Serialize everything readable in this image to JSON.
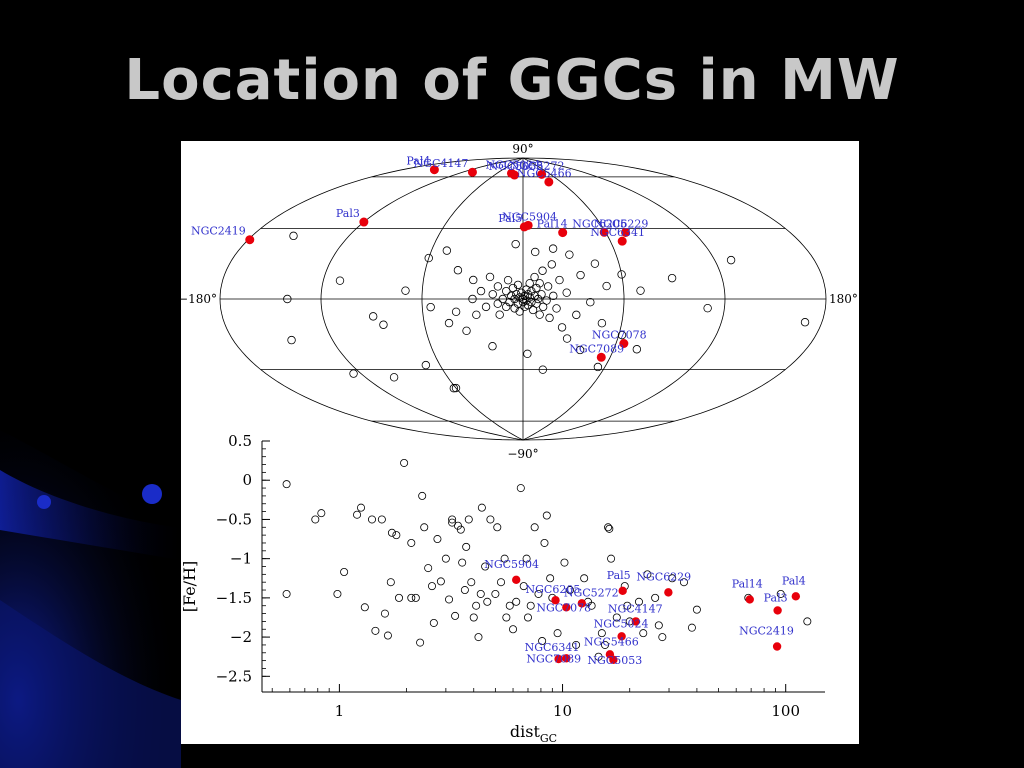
{
  "slide": {
    "title": "Location of GGCs in MW"
  },
  "colors": {
    "background": "#000000",
    "title": "#c8c8c8",
    "highlight": "#e8000b",
    "label": "#3333cc",
    "swoosh": "#0a1a9a"
  },
  "chart_data": [
    {
      "type": "scatter",
      "projection": "aitoff",
      "axis_labels": {
        "top": "90°",
        "bottom": "−90°",
        "left": "−180°",
        "right": "180°"
      },
      "grid": true,
      "highlighted": [
        {
          "name": "NGC2419",
          "l": -179,
          "b": 25
        },
        {
          "name": "Pal3",
          "l": -120,
          "b": 42
        },
        {
          "name": "Pal4",
          "l": -158,
          "b": 72
        },
        {
          "name": "NGC4147",
          "l": -107,
          "b": 77
        },
        {
          "name": "NGC5024",
          "l": -28,
          "b": 80
        },
        {
          "name": "NGC5053",
          "l": -19,
          "b": 79
        },
        {
          "name": "NGC5272",
          "l": 42,
          "b": 79
        },
        {
          "name": "NGC5466",
          "l": 42,
          "b": 74
        },
        {
          "name": "NGC5904",
          "l": 4,
          "b": 47
        },
        {
          "name": "Pal5",
          "l": 1,
          "b": 46
        },
        {
          "name": "Pal14",
          "l": 29,
          "b": 42
        },
        {
          "name": "NGC6229",
          "l": 74,
          "b": 40
        },
        {
          "name": "NGC6205",
          "l": 59,
          "b": 41
        },
        {
          "name": "NGC6341",
          "l": 68,
          "b": 35
        },
        {
          "name": "NGC7078",
          "l": 65,
          "b": -27
        },
        {
          "name": "NGC7089",
          "l": 54,
          "b": -36
        }
      ],
      "others": [
        [
          -155,
          30
        ],
        [
          -140,
          0
        ],
        [
          -145,
          -20
        ],
        [
          -125,
          -40
        ],
        [
          -110,
          10
        ],
        [
          -100,
          -45
        ],
        [
          -90,
          -10
        ],
        [
          -85,
          -15
        ],
        [
          -70,
          -40
        ],
        [
          -70,
          5
        ],
        [
          -60,
          25
        ],
        [
          -55,
          -5
        ],
        [
          -50,
          30
        ],
        [
          -45,
          -15
        ],
        [
          -40,
          18
        ],
        [
          -40,
          -8
        ],
        [
          -35,
          -20
        ],
        [
          -30,
          12
        ],
        [
          -30,
          0
        ],
        [
          -28,
          -10
        ],
        [
          -25,
          5
        ],
        [
          -22,
          -5
        ],
        [
          -20,
          14
        ],
        [
          -18,
          3
        ],
        [
          -15,
          -3
        ],
        [
          -15,
          8
        ],
        [
          -14,
          -10
        ],
        [
          -12,
          0
        ],
        [
          -10,
          5
        ],
        [
          -10,
          -5
        ],
        [
          -9,
          12
        ],
        [
          -8,
          -2
        ],
        [
          -7,
          2
        ],
        [
          -6,
          7
        ],
        [
          -5,
          -6
        ],
        [
          -5,
          0
        ],
        [
          -4,
          3
        ],
        [
          -3,
          -3
        ],
        [
          -3,
          9
        ],
        [
          -2,
          1
        ],
        [
          -2,
          -8
        ],
        [
          -1,
          4
        ],
        [
          0,
          0
        ],
        [
          0,
          -2
        ],
        [
          1,
          2
        ],
        [
          1,
          -5
        ],
        [
          2,
          6
        ],
        [
          2,
          -1
        ],
        [
          3,
          3
        ],
        [
          3,
          -4
        ],
        [
          4,
          1
        ],
        [
          4,
          10
        ],
        [
          5,
          -2
        ],
        [
          5,
          5
        ],
        [
          6,
          -7
        ],
        [
          7,
          2
        ],
        [
          7,
          14
        ],
        [
          8,
          -3
        ],
        [
          8,
          7
        ],
        [
          9,
          0
        ],
        [
          10,
          -10
        ],
        [
          10,
          10
        ],
        [
          11,
          3
        ],
        [
          12,
          -5
        ],
        [
          12,
          18
        ],
        [
          14,
          -1
        ],
        [
          15,
          8
        ],
        [
          16,
          -12
        ],
        [
          18,
          2
        ],
        [
          18,
          22
        ],
        [
          20,
          -6
        ],
        [
          22,
          12
        ],
        [
          24,
          -18
        ],
        [
          26,
          4
        ],
        [
          28,
          -25
        ],
        [
          30,
          28
        ],
        [
          32,
          -10
        ],
        [
          35,
          15
        ],
        [
          38,
          -32
        ],
        [
          40,
          -2
        ],
        [
          45,
          22
        ],
        [
          48,
          -15
        ],
        [
          50,
          8
        ],
        [
          55,
          -42
        ],
        [
          60,
          15
        ],
        [
          62,
          -22
        ],
        [
          70,
          5
        ],
        [
          75,
          -30
        ],
        [
          90,
          12
        ],
        [
          110,
          -5
        ],
        [
          130,
          20
        ],
        [
          170,
          -10
        ],
        [
          -5,
          35
        ],
        [
          8,
          30
        ],
        [
          20,
          32
        ],
        [
          -20,
          -30
        ],
        [
          3,
          -35
        ],
        [
          -60,
          -55
        ],
        [
          -62,
          -55
        ],
        [
          15,
          -45
        ]
      ]
    },
    {
      "type": "scatter",
      "xlabel": "dist_GC",
      "xlabel_main": "dist",
      "xlabel_sub": "GC",
      "ylabel": "[Fe/H]",
      "x_scale": "log",
      "xlim": [
        0.45,
        150
      ],
      "ylim": [
        -2.7,
        0.5
      ],
      "xticks": [
        1,
        10,
        100
      ],
      "xtick_labels": [
        "1",
        "10",
        "100"
      ],
      "yticks": [
        0.5,
        0,
        -0.5,
        -1,
        -1.5,
        -2,
        -2.5
      ],
      "ytick_labels": [
        "0.5",
        "0",
        "−0.5",
        "−1",
        "−1.5",
        "−2",
        "−2.5"
      ],
      "highlighted": [
        {
          "name": "NGC5904",
          "x": 6.2,
          "y": -1.27,
          "lx": -32,
          "ly": -12
        },
        {
          "name": "NGC6205",
          "x": 9.3,
          "y": -1.53,
          "lx": -30,
          "ly": -7
        },
        {
          "name": "NGC5272",
          "x": 12.2,
          "y": -1.57,
          "lx": -18,
          "ly": -7
        },
        {
          "name": "NGC7078",
          "x": 10.4,
          "y": -1.62,
          "lx": -30,
          "ly": 4
        },
        {
          "name": "Pal5",
          "x": 18.6,
          "y": -1.41,
          "lx": -16,
          "ly": -12
        },
        {
          "name": "NGC6229",
          "x": 29.8,
          "y": -1.43,
          "lx": -32,
          "ly": -12
        },
        {
          "name": "NGC4147",
          "x": 21.3,
          "y": -1.8,
          "lx": -28,
          "ly": -9
        },
        {
          "name": "NGC5024",
          "x": 18.4,
          "y": -1.99,
          "lx": -28,
          "ly": -9
        },
        {
          "name": "NGC5466",
          "x": 16.3,
          "y": -2.22,
          "lx": -26,
          "ly": -9
        },
        {
          "name": "NGC5053",
          "x": 16.9,
          "y": -2.29,
          "lx": -26,
          "ly": 4
        },
        {
          "name": "NGC6341",
          "x": 9.6,
          "y": -2.28,
          "lx": -34,
          "ly": -8
        },
        {
          "name": "NGC7089",
          "x": 10.4,
          "y": -2.27,
          "lx": -40,
          "ly": 4
        },
        {
          "name": "Pal14",
          "x": 69,
          "y": -1.52,
          "lx": -18,
          "ly": -12
        },
        {
          "name": "Pal3",
          "x": 92,
          "y": -1.66,
          "lx": -14,
          "ly": -9
        },
        {
          "name": "Pal4",
          "x": 111,
          "y": -1.48,
          "lx": -14,
          "ly": -12
        },
        {
          "name": "NGC2419",
          "x": 91.5,
          "y": -2.12,
          "lx": -38,
          "ly": -12
        }
      ],
      "others": [
        [
          0.58,
          -0.05
        ],
        [
          0.58,
          -1.45
        ],
        [
          0.78,
          -0.5
        ],
        [
          0.83,
          -0.42
        ],
        [
          0.98,
          -1.45
        ],
        [
          1.05,
          -1.17
        ],
        [
          1.2,
          -0.44
        ],
        [
          1.25,
          -0.35
        ],
        [
          1.3,
          -1.62
        ],
        [
          1.4,
          -0.5
        ],
        [
          1.45,
          -1.92
        ],
        [
          1.55,
          -0.5
        ],
        [
          1.6,
          -1.7
        ],
        [
          1.65,
          -1.98
        ],
        [
          1.7,
          -1.3
        ],
        [
          1.72,
          -0.67
        ],
        [
          1.8,
          -0.7
        ],
        [
          1.85,
          -1.5
        ],
        [
          1.95,
          0.22
        ],
        [
          2.1,
          -0.8
        ],
        [
          2.1,
          -1.5
        ],
        [
          2.2,
          -1.5
        ],
        [
          2.3,
          -2.07
        ],
        [
          2.35,
          -0.2
        ],
        [
          2.4,
          -0.6
        ],
        [
          2.5,
          -1.12
        ],
        [
          2.6,
          -1.35
        ],
        [
          2.65,
          -1.82
        ],
        [
          2.75,
          -0.75
        ],
        [
          2.85,
          -1.29
        ],
        [
          3.0,
          -1.0
        ],
        [
          3.1,
          -1.52
        ],
        [
          3.2,
          -0.5
        ],
        [
          3.3,
          -1.73
        ],
        [
          3.4,
          -0.58
        ],
        [
          3.5,
          -0.63
        ],
        [
          3.55,
          -1.05
        ],
        [
          3.65,
          -1.4
        ],
        [
          3.7,
          -0.85
        ],
        [
          3.8,
          -0.5
        ],
        [
          3.9,
          -1.3
        ],
        [
          4.0,
          -1.75
        ],
        [
          4.1,
          -1.6
        ],
        [
          4.2,
          -2.0
        ],
        [
          4.3,
          -1.45
        ],
        [
          4.35,
          -0.35
        ],
        [
          4.5,
          -1.1
        ],
        [
          4.6,
          -1.55
        ],
        [
          4.75,
          -0.5
        ],
        [
          5.0,
          -1.45
        ],
        [
          5.1,
          -0.6
        ],
        [
          5.3,
          -1.3
        ],
        [
          5.5,
          -1.0
        ],
        [
          5.6,
          -1.75
        ],
        [
          5.8,
          -1.6
        ],
        [
          6.0,
          -1.9
        ],
        [
          6.2,
          -1.55
        ],
        [
          6.5,
          -0.1
        ],
        [
          6.7,
          -1.35
        ],
        [
          6.9,
          -1.0
        ],
        [
          7.0,
          -1.75
        ],
        [
          7.2,
          -1.6
        ],
        [
          7.5,
          -0.6
        ],
        [
          7.8,
          -1.45
        ],
        [
          8.1,
          -2.05
        ],
        [
          8.3,
          -0.8
        ],
        [
          8.5,
          -0.45
        ],
        [
          8.8,
          -1.25
        ],
        [
          9.0,
          -1.5
        ],
        [
          9.5,
          -1.95
        ],
        [
          10.2,
          -1.05
        ],
        [
          10.8,
          -1.4
        ],
        [
          11.5,
          -2.1
        ],
        [
          12.5,
          -1.25
        ],
        [
          13.5,
          -1.6
        ],
        [
          14.5,
          -2.25
        ],
        [
          15.0,
          -1.95
        ],
        [
          15.5,
          -2.1
        ],
        [
          16.0,
          -0.6
        ],
        [
          16.2,
          -0.62
        ],
        [
          16.5,
          -1.0
        ],
        [
          17.5,
          -1.75
        ],
        [
          19.0,
          -1.35
        ],
        [
          19.5,
          -1.6
        ],
        [
          20.0,
          -1.8
        ],
        [
          22.0,
          -1.55
        ],
        [
          23.0,
          -1.95
        ],
        [
          24.0,
          -1.2
        ],
        [
          26.0,
          -1.5
        ],
        [
          27.0,
          -1.85
        ],
        [
          28.0,
          -2.0
        ],
        [
          31.0,
          -1.25
        ],
        [
          35.0,
          -1.3
        ],
        [
          38.0,
          -1.88
        ],
        [
          40.0,
          -1.65
        ],
        [
          68.0,
          -1.5
        ],
        [
          95.0,
          -1.45
        ],
        [
          125.0,
          -1.8
        ],
        [
          3.2,
          -0.54
        ],
        [
          13.0,
          -1.55
        ]
      ]
    }
  ]
}
